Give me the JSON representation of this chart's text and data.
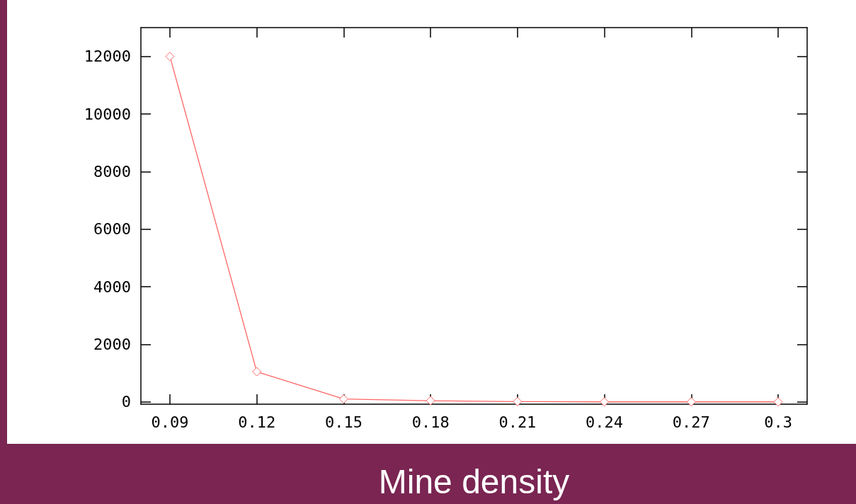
{
  "chart_data": {
    "type": "line",
    "xlabel": "Mine density",
    "x": [
      0.09,
      0.12,
      0.15,
      0.18,
      0.21,
      0.24,
      0.27,
      0.3
    ],
    "series": [
      {
        "color": "#ff6666",
        "values": [
          12000,
          1050,
          100,
          40,
          10,
          0,
          0,
          0
        ]
      }
    ],
    "xlim": [
      0.08,
      0.31
    ],
    "xticks": [
      0.09,
      0.12,
      0.15,
      0.18,
      0.21,
      0.24,
      0.27,
      0.3
    ],
    "ylim": [
      -80,
      13000
    ],
    "yticks": [
      0,
      2000,
      4000,
      6000,
      8000,
      10000,
      12000
    ],
    "marker": "diamond",
    "line_style": "solid"
  }
}
